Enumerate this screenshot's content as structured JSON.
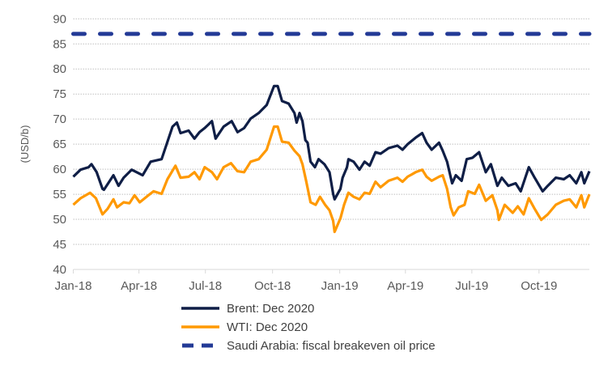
{
  "chart_data": {
    "type": "line",
    "title": "",
    "xlabel": "",
    "ylabel": "(USD/b)",
    "ylim": [
      40,
      90
    ],
    "yticks": [
      40,
      45,
      50,
      55,
      60,
      65,
      70,
      75,
      80,
      85,
      90
    ],
    "xlim": [
      "2018-01-01",
      "2019-12-09"
    ],
    "xticks": [
      {
        "date": "2018-01-01",
        "label": "Jan-18"
      },
      {
        "date": "2018-04-01",
        "label": "Apr-18"
      },
      {
        "date": "2018-07-01",
        "label": "Jul-18"
      },
      {
        "date": "2018-10-01",
        "label": "Oct-18"
      },
      {
        "date": "2019-01-01",
        "label": "Jan-19"
      },
      {
        "date": "2019-04-01",
        "label": "Apr-19"
      },
      {
        "date": "2019-07-01",
        "label": "Jul-19"
      },
      {
        "date": "2019-10-01",
        "label": "Oct-19"
      }
    ],
    "grid": "horizontal dotted",
    "legend": "bottom",
    "series": [
      {
        "name": "Brent: Dec 2020",
        "color": "#0f1e46",
        "style": "solid",
        "points": [
          [
            "2018-01-01",
            58.5
          ],
          [
            "2018-01-11",
            59.9
          ],
          [
            "2018-01-22",
            60.4
          ],
          [
            "2018-01-26",
            61.0
          ],
          [
            "2018-02-02",
            59.4
          ],
          [
            "2018-02-10",
            56.1
          ],
          [
            "2018-02-12",
            55.9
          ],
          [
            "2018-02-25",
            58.8
          ],
          [
            "2018-03-04",
            56.7
          ],
          [
            "2018-03-11",
            58.3
          ],
          [
            "2018-03-22",
            59.9
          ],
          [
            "2018-04-06",
            58.8
          ],
          [
            "2018-04-17",
            61.5
          ],
          [
            "2018-05-02",
            62.0
          ],
          [
            "2018-05-17",
            68.5
          ],
          [
            "2018-05-23",
            69.3
          ],
          [
            "2018-05-28",
            67.2
          ],
          [
            "2018-06-08",
            67.7
          ],
          [
            "2018-06-16",
            66.1
          ],
          [
            "2018-06-23",
            67.4
          ],
          [
            "2018-06-30",
            68.2
          ],
          [
            "2018-07-10",
            69.6
          ],
          [
            "2018-07-15",
            66.1
          ],
          [
            "2018-07-26",
            68.5
          ],
          [
            "2018-08-06",
            69.6
          ],
          [
            "2018-08-14",
            67.4
          ],
          [
            "2018-08-23",
            68.2
          ],
          [
            "2018-09-01",
            70.1
          ],
          [
            "2018-09-12",
            71.2
          ],
          [
            "2018-09-23",
            72.8
          ],
          [
            "2018-10-03",
            76.6
          ],
          [
            "2018-10-08",
            76.6
          ],
          [
            "2018-10-14",
            73.6
          ],
          [
            "2018-10-23",
            73.1
          ],
          [
            "2018-10-31",
            71.2
          ],
          [
            "2018-11-03",
            69.3
          ],
          [
            "2018-11-07",
            71.2
          ],
          [
            "2018-11-11",
            69.6
          ],
          [
            "2018-11-15",
            65.8
          ],
          [
            "2018-11-18",
            65.3
          ],
          [
            "2018-11-22",
            61.5
          ],
          [
            "2018-11-28",
            60.4
          ],
          [
            "2018-12-03",
            62.0
          ],
          [
            "2018-12-11",
            61.0
          ],
          [
            "2018-12-18",
            59.4
          ],
          [
            "2018-12-23",
            55.1
          ],
          [
            "2018-12-25",
            54.0
          ],
          [
            "2019-01-02",
            56.1
          ],
          [
            "2019-01-05",
            58.3
          ],
          [
            "2019-01-11",
            60.4
          ],
          [
            "2019-01-13",
            62.0
          ],
          [
            "2019-01-20",
            61.5
          ],
          [
            "2019-01-28",
            59.9
          ],
          [
            "2019-02-04",
            61.5
          ],
          [
            "2019-02-11",
            60.7
          ],
          [
            "2019-02-19",
            63.4
          ],
          [
            "2019-02-26",
            63.1
          ],
          [
            "2019-03-09",
            64.2
          ],
          [
            "2019-03-21",
            64.7
          ],
          [
            "2019-03-28",
            63.9
          ],
          [
            "2019-04-04",
            65.0
          ],
          [
            "2019-04-15",
            66.3
          ],
          [
            "2019-04-24",
            67.2
          ],
          [
            "2019-04-30",
            65.3
          ],
          [
            "2019-05-07",
            63.9
          ],
          [
            "2019-05-17",
            65.3
          ],
          [
            "2019-05-22",
            63.7
          ],
          [
            "2019-05-28",
            61.5
          ],
          [
            "2019-06-04",
            57.2
          ],
          [
            "2019-06-09",
            58.8
          ],
          [
            "2019-06-17",
            57.7
          ],
          [
            "2019-06-24",
            62.0
          ],
          [
            "2019-07-02",
            62.3
          ],
          [
            "2019-07-11",
            63.4
          ],
          [
            "2019-07-20",
            59.4
          ],
          [
            "2019-07-27",
            61.0
          ],
          [
            "2019-08-05",
            56.7
          ],
          [
            "2019-08-11",
            58.3
          ],
          [
            "2019-08-20",
            56.7
          ],
          [
            "2019-08-30",
            57.2
          ],
          [
            "2019-09-06",
            55.6
          ],
          [
            "2019-09-17",
            60.4
          ],
          [
            "2019-09-25",
            58.3
          ],
          [
            "2019-10-06",
            55.6
          ],
          [
            "2019-10-13",
            56.7
          ],
          [
            "2019-10-24",
            58.3
          ],
          [
            "2019-11-04",
            58.0
          ],
          [
            "2019-11-12",
            58.8
          ],
          [
            "2019-11-21",
            57.2
          ],
          [
            "2019-11-28",
            59.4
          ],
          [
            "2019-12-02",
            57.2
          ],
          [
            "2019-12-09",
            59.6
          ]
        ]
      },
      {
        "name": "WTI: Dec 2020",
        "color": "#ff9900",
        "style": "solid",
        "points": [
          [
            "2018-01-01",
            52.9
          ],
          [
            "2018-01-11",
            54.2
          ],
          [
            "2018-01-24",
            55.3
          ],
          [
            "2018-02-01",
            54.2
          ],
          [
            "2018-02-10",
            51.0
          ],
          [
            "2018-02-17",
            52.1
          ],
          [
            "2018-02-25",
            54.0
          ],
          [
            "2018-03-02",
            52.4
          ],
          [
            "2018-03-11",
            53.4
          ],
          [
            "2018-03-19",
            53.2
          ],
          [
            "2018-03-26",
            54.8
          ],
          [
            "2018-04-02",
            53.4
          ],
          [
            "2018-04-14",
            54.8
          ],
          [
            "2018-04-21",
            55.6
          ],
          [
            "2018-05-02",
            55.1
          ],
          [
            "2018-05-10",
            58.0
          ],
          [
            "2018-05-21",
            60.7
          ],
          [
            "2018-05-28",
            58.3
          ],
          [
            "2018-06-08",
            58.5
          ],
          [
            "2018-06-16",
            59.4
          ],
          [
            "2018-06-23",
            58.0
          ],
          [
            "2018-06-30",
            60.4
          ],
          [
            "2018-07-10",
            59.4
          ],
          [
            "2018-07-17",
            58.0
          ],
          [
            "2018-07-26",
            60.4
          ],
          [
            "2018-08-05",
            61.2
          ],
          [
            "2018-08-14",
            59.6
          ],
          [
            "2018-08-23",
            59.4
          ],
          [
            "2018-09-01",
            61.5
          ],
          [
            "2018-09-12",
            62.0
          ],
          [
            "2018-09-23",
            63.9
          ],
          [
            "2018-10-03",
            68.5
          ],
          [
            "2018-10-08",
            68.5
          ],
          [
            "2018-10-14",
            65.5
          ],
          [
            "2018-10-23",
            65.3
          ],
          [
            "2018-10-31",
            63.7
          ],
          [
            "2018-11-07",
            62.6
          ],
          [
            "2018-11-11",
            61.0
          ],
          [
            "2018-11-16",
            57.7
          ],
          [
            "2018-11-22",
            53.4
          ],
          [
            "2018-11-29",
            52.9
          ],
          [
            "2018-12-05",
            54.5
          ],
          [
            "2018-12-12",
            52.9
          ],
          [
            "2018-12-18",
            51.8
          ],
          [
            "2018-12-23",
            49.7
          ],
          [
            "2018-12-25",
            47.5
          ],
          [
            "2019-01-02",
            50.2
          ],
          [
            "2019-01-07",
            52.9
          ],
          [
            "2019-01-13",
            55.3
          ],
          [
            "2019-01-20",
            54.5
          ],
          [
            "2019-01-28",
            54.0
          ],
          [
            "2019-02-04",
            55.3
          ],
          [
            "2019-02-11",
            55.1
          ],
          [
            "2019-02-19",
            57.5
          ],
          [
            "2019-02-26",
            56.4
          ],
          [
            "2019-03-09",
            57.7
          ],
          [
            "2019-03-21",
            58.3
          ],
          [
            "2019-03-28",
            57.5
          ],
          [
            "2019-04-04",
            58.5
          ],
          [
            "2019-04-15",
            59.4
          ],
          [
            "2019-04-24",
            59.9
          ],
          [
            "2019-04-30",
            58.5
          ],
          [
            "2019-05-07",
            57.7
          ],
          [
            "2019-05-17",
            58.5
          ],
          [
            "2019-05-22",
            58.8
          ],
          [
            "2019-05-28",
            56.1
          ],
          [
            "2019-06-02",
            52.4
          ],
          [
            "2019-06-06",
            50.8
          ],
          [
            "2019-06-13",
            52.4
          ],
          [
            "2019-06-21",
            52.9
          ],
          [
            "2019-06-26",
            55.6
          ],
          [
            "2019-07-05",
            55.1
          ],
          [
            "2019-07-11",
            56.9
          ],
          [
            "2019-07-20",
            53.7
          ],
          [
            "2019-07-29",
            54.8
          ],
          [
            "2019-08-05",
            51.8
          ],
          [
            "2019-08-07",
            49.9
          ],
          [
            "2019-08-15",
            52.9
          ],
          [
            "2019-08-26",
            51.3
          ],
          [
            "2019-09-02",
            52.6
          ],
          [
            "2019-09-10",
            51.0
          ],
          [
            "2019-09-17",
            54.2
          ],
          [
            "2019-09-25",
            52.1
          ],
          [
            "2019-10-04",
            49.9
          ],
          [
            "2019-10-13",
            51.0
          ],
          [
            "2019-10-24",
            52.9
          ],
          [
            "2019-11-04",
            53.7
          ],
          [
            "2019-11-12",
            54.0
          ],
          [
            "2019-11-21",
            52.4
          ],
          [
            "2019-11-28",
            54.8
          ],
          [
            "2019-12-02",
            52.4
          ],
          [
            "2019-12-09",
            55.0
          ]
        ]
      },
      {
        "name": "Saudi Arabia: fiscal breakeven oil price",
        "color": "#233a96",
        "style": "dashed",
        "points": [
          [
            "2018-01-01",
            87
          ],
          [
            "2019-12-09",
            87
          ]
        ]
      }
    ]
  }
}
